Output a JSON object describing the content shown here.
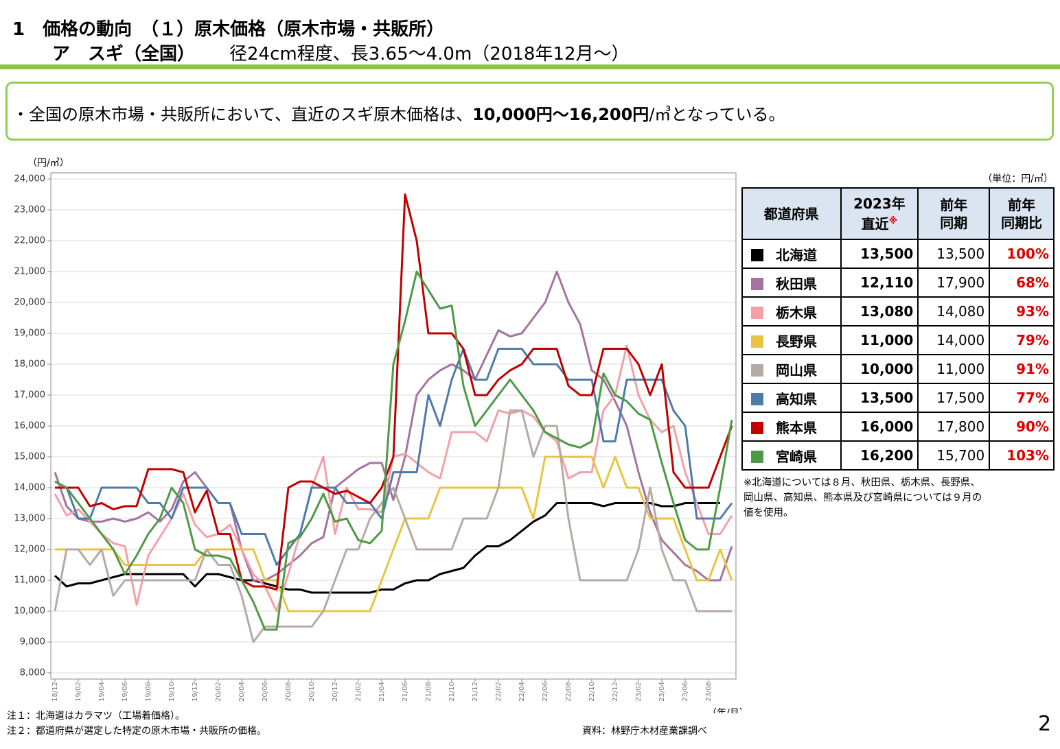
{
  "title": {
    "line1": "1　価格の動向　（１）原木価格（原木市場・共販所）",
    "line2a": "ア　スギ（全国）",
    "line2b": "径24cm程度、長3.65～4.0m（2018年12月～）"
  },
  "box": {
    "bullet": "・",
    "text1": "全国の原木市場・共販所において、直近のスギ原木価格は、",
    "bold": "10,000円～16,200円",
    "text2": "/㎥となっている。"
  },
  "chart_data": {
    "type": "line",
    "y_unit": "（円/㎥）",
    "x_unit": "（年/月）",
    "grid": true,
    "categories": [
      "18/12",
      null,
      "19/02",
      null,
      "19/04",
      null,
      "19/06",
      null,
      "19/08",
      null,
      "19/10",
      null,
      "19/12",
      null,
      "20/02",
      null,
      "20/04",
      null,
      "20/06",
      null,
      "20/08",
      null,
      "20/10",
      null,
      "20/12",
      null,
      "21/02",
      null,
      "21/04",
      null,
      "21/06",
      null,
      "21/08",
      null,
      "21/10",
      null,
      "21/12",
      null,
      "22/02",
      null,
      "22/04",
      null,
      "22/06",
      null,
      "22/08",
      null,
      "22/10",
      null,
      "22/12",
      null,
      "23/02",
      null,
      "23/04",
      null,
      "23/06",
      null,
      "23/08",
      null,
      null
    ],
    "ylim": [
      7800,
      24200
    ],
    "yticks": [
      {
        "value": 8000,
        "label": "8,000"
      },
      {
        "value": 9000,
        "label": "9,000"
      },
      {
        "value": 10000,
        "label": "10,000"
      },
      {
        "value": 11000,
        "label": "11,000"
      },
      {
        "value": 12000,
        "label": "12,000"
      },
      {
        "value": 13000,
        "label": "13,000"
      },
      {
        "value": 14000,
        "label": "14,000"
      },
      {
        "value": 15000,
        "label": "15,000"
      },
      {
        "value": 16000,
        "label": "16,000"
      },
      {
        "value": 17000,
        "label": "17,000"
      },
      {
        "value": 18000,
        "label": "18,000"
      },
      {
        "value": 19000,
        "label": "19,000"
      },
      {
        "value": 20000,
        "label": "20,000"
      },
      {
        "value": 21000,
        "label": "21,000"
      },
      {
        "value": 22000,
        "label": "22,000"
      },
      {
        "value": 23000,
        "label": "23,000"
      },
      {
        "value": 24000,
        "label": "24,000"
      }
    ],
    "series": [
      {
        "name": "北海道",
        "color": "#000000",
        "values": [
          11150,
          10800,
          10900,
          10900,
          11000,
          11100,
          11200,
          11200,
          11200,
          11200,
          11200,
          11200,
          10800,
          11200,
          11200,
          11100,
          11000,
          11000,
          10900,
          10800,
          10700,
          10700,
          10600,
          10600,
          10600,
          10600,
          10600,
          10600,
          10700,
          10700,
          10900,
          11000,
          11000,
          11200,
          11300,
          11400,
          11800,
          12100,
          12100,
          12300,
          12600,
          12900,
          13100,
          13500,
          13500,
          13500,
          13500,
          13400,
          13500,
          13500,
          13500,
          13500,
          13400,
          13400,
          13500,
          13500,
          13500,
          13500,
          null
        ]
      },
      {
        "name": "秋田県",
        "color": "#a5739e",
        "values": [
          14500,
          13400,
          13000,
          12900,
          12900,
          13000,
          12900,
          13000,
          13200,
          12900,
          13300,
          14200,
          14500,
          14000,
          13500,
          13500,
          12000,
          11000,
          11000,
          11200,
          11500,
          11800,
          12200,
          12400,
          14000,
          14300,
          14600,
          14800,
          14800,
          13600,
          15000,
          17000,
          17500,
          17800,
          18000,
          17800,
          17500,
          18300,
          19100,
          18900,
          19000,
          19500,
          20000,
          21000,
          20000,
          19300,
          17800,
          17500,
          16800,
          16000,
          14500,
          13200,
          12300,
          11900,
          11500,
          11300,
          11000,
          11000,
          12100
        ]
      },
      {
        "name": "栃木県",
        "color": "#f4a0a8",
        "values": [
          13800,
          13100,
          13300,
          12900,
          12500,
          12200,
          12100,
          10200,
          11800,
          12400,
          13000,
          13800,
          12800,
          12400,
          12500,
          12800,
          12000,
          11200,
          10800,
          10000,
          11200,
          12500,
          14000,
          15000,
          12500,
          14000,
          13300,
          13300,
          13200,
          15000,
          15100,
          14800,
          14500,
          14300,
          15800,
          15800,
          15800,
          15500,
          16500,
          16400,
          16500,
          16300,
          15800,
          15500,
          14300,
          14500,
          14500,
          16500,
          17000,
          18600,
          17000,
          16200,
          15800,
          16000,
          14500,
          13500,
          12500,
          12500,
          13100
        ]
      },
      {
        "name": "長野県",
        "color": "#e8c540",
        "values": [
          12000,
          12000,
          12000,
          12000,
          12000,
          12000,
          11500,
          11500,
          11500,
          11500,
          11500,
          11500,
          11500,
          12000,
          12000,
          12000,
          12000,
          12000,
          11000,
          11000,
          10000,
          10000,
          10000,
          10000,
          10000,
          10000,
          10000,
          10000,
          11000,
          12000,
          13000,
          13000,
          13000,
          14000,
          14000,
          14000,
          14000,
          14000,
          14000,
          14000,
          14000,
          13000,
          15000,
          15000,
          15000,
          15000,
          15000,
          14000,
          15000,
          14000,
          14000,
          13000,
          13000,
          13000,
          12000,
          11000,
          11000,
          12000,
          11000
        ]
      },
      {
        "name": "岡山県",
        "color": "#b5aaa5",
        "values": [
          10000,
          12000,
          12000,
          11500,
          12000,
          10500,
          11000,
          11000,
          11000,
          11000,
          11000,
          11000,
          11000,
          12000,
          11500,
          11500,
          10500,
          9000,
          9500,
          9500,
          9500,
          9500,
          9500,
          10000,
          11000,
          12000,
          12000,
          13000,
          13500,
          14000,
          13000,
          12000,
          12000,
          12000,
          12000,
          13000,
          13000,
          13000,
          14000,
          16500,
          16500,
          15000,
          16000,
          16000,
          13000,
          11000,
          11000,
          11000,
          11000,
          11000,
          12000,
          14000,
          12000,
          11000,
          11000,
          10000,
          10000,
          10000,
          10000
        ]
      },
      {
        "name": "高知県",
        "color": "#4f7bab",
        "values": [
          14000,
          14000,
          13000,
          13000,
          14000,
          14000,
          14000,
          14000,
          13500,
          13500,
          13000,
          14000,
          14000,
          14000,
          13500,
          13500,
          12500,
          12500,
          12500,
          11500,
          12000,
          12500,
          14000,
          14000,
          14000,
          13500,
          13500,
          13500,
          13000,
          14500,
          14500,
          14500,
          17000,
          16000,
          17500,
          18500,
          17500,
          17500,
          18500,
          18500,
          18500,
          18000,
          18000,
          18000,
          17500,
          17500,
          17500,
          15500,
          15500,
          17500,
          17500,
          17500,
          17500,
          16500,
          16000,
          13000,
          13000,
          13000,
          13500
        ]
      },
      {
        "name": "熊本県",
        "color": "#c00000",
        "values": [
          14000,
          14000,
          14000,
          13400,
          13500,
          13300,
          13400,
          13400,
          14600,
          14600,
          14600,
          14500,
          13200,
          13900,
          12500,
          12500,
          11000,
          10800,
          10800,
          10700,
          14000,
          14200,
          14200,
          14000,
          13800,
          13900,
          13700,
          13500,
          14000,
          15000,
          23500,
          22000,
          19000,
          19000,
          19000,
          18500,
          17000,
          17000,
          17500,
          17800,
          18000,
          18500,
          18500,
          18500,
          17300,
          17000,
          17000,
          18500,
          18500,
          18500,
          18000,
          17000,
          18000,
          14500,
          14000,
          14000,
          14000,
          15000,
          16000
        ]
      },
      {
        "name": "宮崎県",
        "color": "#4e9a47",
        "values": [
          14200,
          14000,
          13500,
          13000,
          12500,
          12000,
          11200,
          11800,
          12500,
          13000,
          14000,
          13500,
          12000,
          11800,
          11800,
          11700,
          11000,
          10300,
          9400,
          9400,
          12200,
          12400,
          13000,
          13800,
          12900,
          13000,
          12300,
          12200,
          12600,
          18000,
          19400,
          21000,
          20400,
          19800,
          19900,
          17300,
          16000,
          16500,
          17000,
          17500,
          17000,
          16500,
          15800,
          15600,
          15400,
          15300,
          15500,
          17700,
          17000,
          16800,
          16400,
          16200,
          14800,
          13500,
          12300,
          12000,
          12000,
          14000,
          16200
        ]
      }
    ]
  },
  "table": {
    "unit": "（単位：円/㎥）",
    "header": [
      [
        "都道府県"
      ],
      [
        "2023年",
        "直近"
      ],
      [
        "前年",
        "同期"
      ],
      [
        "前年",
        "同期比"
      ]
    ],
    "latest_mark": "※",
    "rows": [
      [
        "13,500",
        "13,500",
        "100%"
      ],
      [
        "12,110",
        "17,900",
        "68%"
      ],
      [
        "13,080",
        "14,080",
        "93%"
      ],
      [
        "11,000",
        "14,000",
        "79%"
      ],
      [
        "10,000",
        "11,000",
        "91%"
      ],
      [
        "13,500",
        "17,500",
        "77%"
      ],
      [
        "16,000",
        "17,800",
        "90%"
      ],
      [
        "16,200",
        "15,700",
        "103%"
      ]
    ],
    "footnote": [
      "※北海道については８月、秋田県、栃木県、長野県、",
      "岡山県、高知県、熊本県及び宮崎県については９月の",
      "値を使用。"
    ]
  },
  "notes": [
    "注１：北海道はカラマツ（工場着価格）。",
    "注２：都道府県が選定した特定の原木市場・共販所の価格。"
  ],
  "source": "資料：林野庁木材産業課調べ",
  "page_number": "2"
}
